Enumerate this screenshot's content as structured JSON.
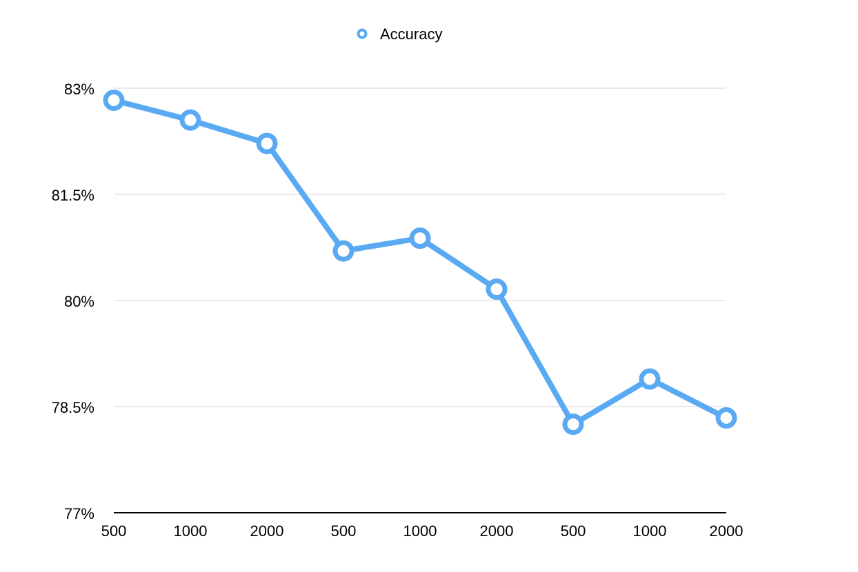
{
  "chart_data": {
    "type": "line",
    "title": "",
    "xlabel": "",
    "ylabel": "",
    "categories": [
      "500",
      "1000",
      "2000",
      "500",
      "1000",
      "2000",
      "500",
      "1000",
      "2000"
    ],
    "series": [
      {
        "name": "Accuracy",
        "color": "#5aaaf3",
        "values": [
          82.83,
          82.55,
          82.22,
          80.7,
          80.88,
          80.16,
          78.25,
          78.89,
          78.34
        ]
      }
    ],
    "ylim": [
      77,
      83
    ],
    "yticks": [
      77,
      78.5,
      80,
      81.5,
      83
    ],
    "ytick_labels": [
      "77%",
      "78.5%",
      "80%",
      "81.5%",
      "83%"
    ],
    "grid": true,
    "legend": {
      "position": "top-center",
      "marker": "circle-outline"
    }
  }
}
